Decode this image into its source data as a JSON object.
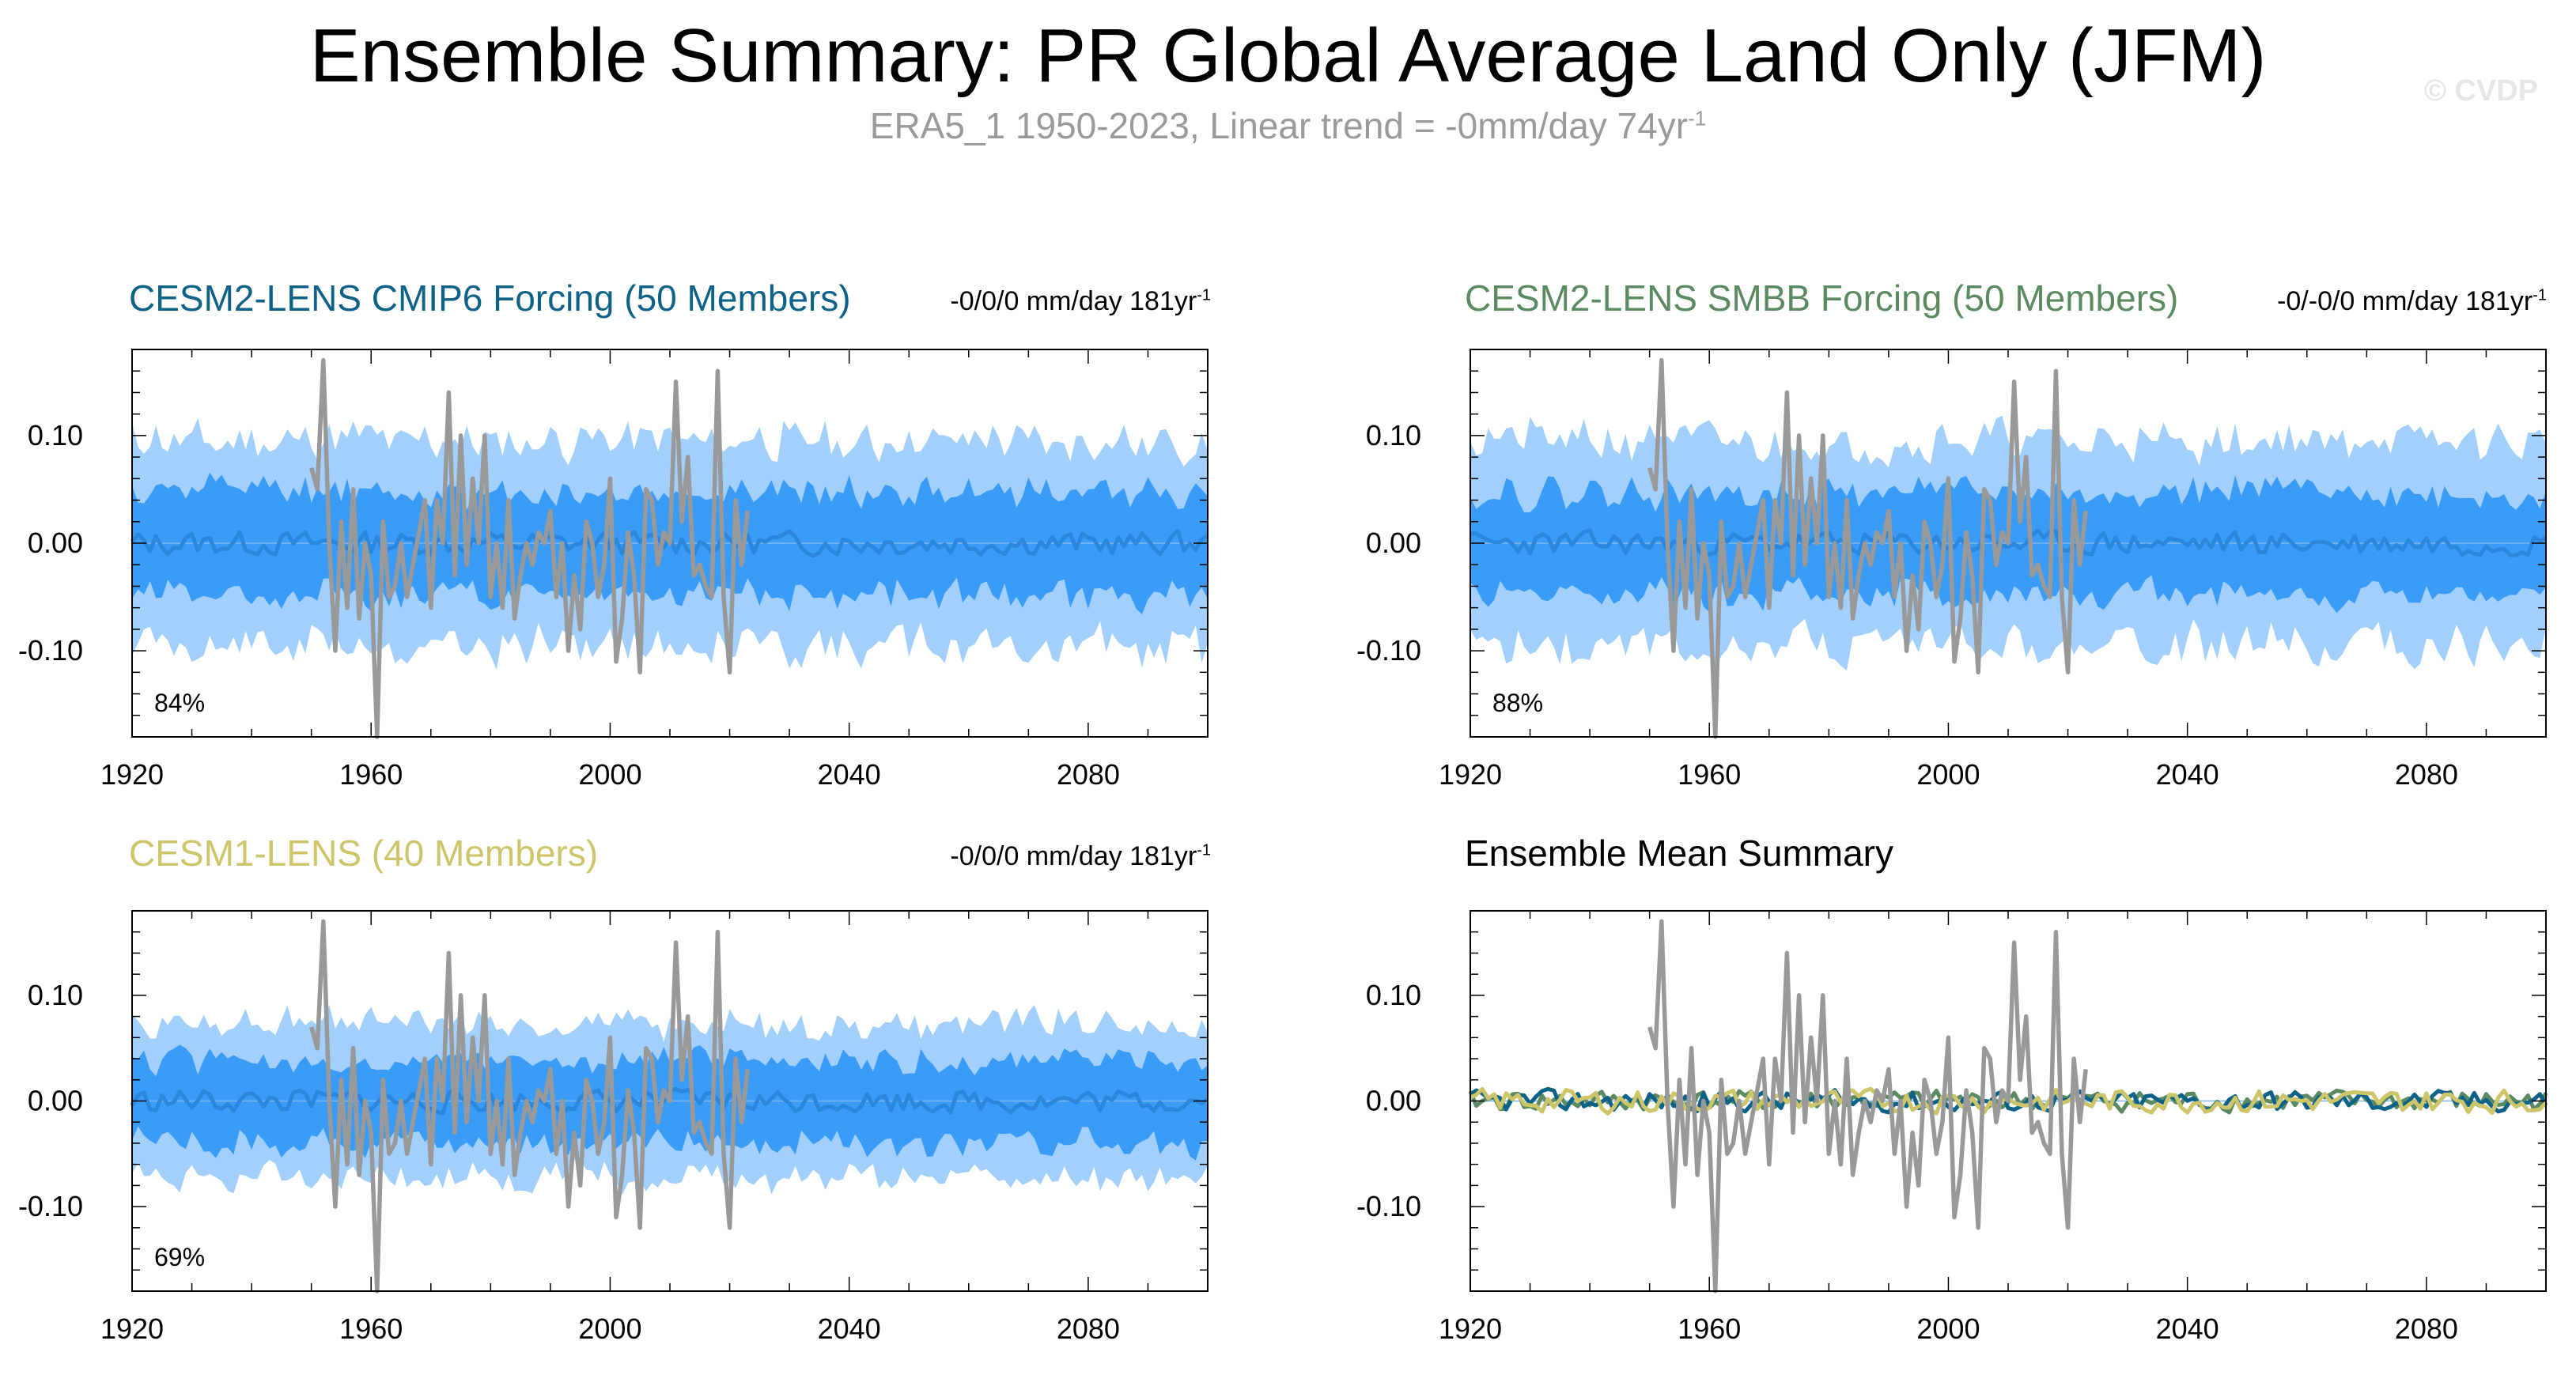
{
  "title": "Ensemble Summary: PR Global Average Land Only (JFM)",
  "subtitle": {
    "text": "ERA5_1 1950-2023, Linear trend = -0mm/day 74yr",
    "superscript": "-1"
  },
  "watermark": "© CVDP",
  "colors": {
    "observations": "#999999",
    "band_outer": "#a2cffc",
    "band_inner": "#3a9cf6",
    "ensemble_mean": "#2b86de",
    "cesm2_cmip6": "#0f6287",
    "cesm2_smbb": "#5b8a62",
    "cesm1": "#ccc56a"
  },
  "chart_data": [
    {
      "id": "cesm2-cmip6",
      "type": "area",
      "title": "CESM2-LENS CMIP6 Forcing (50 Members)",
      "title_color": "#0f6287",
      "trend": "-0/0/0 mm/day 181yr",
      "trend_superscript": "-1",
      "percent_label": "84%",
      "xlim": [
        1920,
        2100
      ],
      "ylim": [
        -0.18,
        0.18
      ],
      "x_ticks": [
        1920,
        1960,
        2000,
        2040,
        2080
      ],
      "y_ticks": [
        -0.1,
        0.0,
        0.1
      ],
      "y_tick_labels": [
        "-0.10",
        "0.00",
        "0.10"
      ],
      "series": [
        {
          "name": "Ensemble spread (outer)",
          "role": "band_outer",
          "width_max": 0.115,
          "width_min": 0.075,
          "seed": 11
        },
        {
          "name": "Ensemble spread (inner)",
          "role": "band_inner",
          "width_max": 0.06,
          "width_min": 0.035,
          "seed": 12
        },
        {
          "name": "Ensemble mean",
          "role": "mean",
          "amplitude": 0.013,
          "seed": 13
        },
        {
          "name": "ERA5_1",
          "role": "obs",
          "x_start": 1950,
          "x_end": 2023
        }
      ]
    },
    {
      "id": "cesm2-smbb",
      "type": "area",
      "title": "CESM2-LENS SMBB Forcing (50 Members)",
      "title_color": "#5b8a62",
      "trend": "-0/-0/0 mm/day 181yr",
      "trend_superscript": "-1",
      "percent_label": "88%",
      "xlim": [
        1920,
        2100
      ],
      "ylim": [
        -0.18,
        0.18
      ],
      "x_ticks": [
        1920,
        1960,
        2000,
        2040,
        2080
      ],
      "y_ticks": [
        -0.1,
        0.0,
        0.1
      ],
      "y_tick_labels": [
        "-0.10",
        "0.00",
        "0.10"
      ],
      "series": [
        {
          "name": "Ensemble spread (outer)",
          "role": "band_outer",
          "width_max": 0.115,
          "width_min": 0.075,
          "seed": 21
        },
        {
          "name": "Ensemble spread (inner)",
          "role": "band_inner",
          "width_max": 0.06,
          "width_min": 0.035,
          "seed": 22
        },
        {
          "name": "Ensemble mean",
          "role": "mean",
          "amplitude": 0.013,
          "seed": 23
        },
        {
          "name": "ERA5_1",
          "role": "obs",
          "x_start": 1950,
          "x_end": 2023
        }
      ]
    },
    {
      "id": "cesm1",
      "type": "area",
      "title": "CESM1-LENS (40 Members)",
      "title_color": "#ccc56a",
      "trend": "-0/0/0 mm/day 181yr",
      "trend_superscript": "-1",
      "percent_label": "69%",
      "xlim": [
        1920,
        2100
      ],
      "ylim": [
        -0.18,
        0.18
      ],
      "x_ticks": [
        1920,
        1960,
        2000,
        2040,
        2080
      ],
      "y_ticks": [
        -0.1,
        0.0,
        0.1
      ],
      "y_tick_labels": [
        "-0.10",
        "0.00",
        "0.10"
      ],
      "series": [
        {
          "name": "Ensemble spread (outer)",
          "role": "band_outer",
          "width_max": 0.085,
          "width_min": 0.06,
          "seed": 31
        },
        {
          "name": "Ensemble spread (inner)",
          "role": "band_inner",
          "width_max": 0.05,
          "width_min": 0.03,
          "seed": 32
        },
        {
          "name": "Ensemble mean",
          "role": "mean",
          "amplitude": 0.013,
          "seed": 33
        },
        {
          "name": "ERA5_1",
          "role": "obs",
          "x_start": 1950,
          "x_end": 2023
        }
      ]
    },
    {
      "id": "ensemble-mean-summary",
      "type": "line",
      "title": "Ensemble Mean Summary",
      "title_color": "#000000",
      "xlim": [
        1920,
        2100
      ],
      "ylim": [
        -0.18,
        0.18
      ],
      "x_ticks": [
        1920,
        1960,
        2000,
        2040,
        2080
      ],
      "y_ticks": [
        -0.1,
        0.0,
        0.1
      ],
      "y_tick_labels": [
        "-0.10",
        "0.00",
        "0.10"
      ],
      "series": [
        {
          "name": "ERA5_1",
          "role": "obs",
          "x_start": 1950,
          "x_end": 2023
        },
        {
          "name": "CESM2-LENS SMBB Forcing",
          "role": "mean_line",
          "color_key": "cesm2_smbb",
          "amplitude": 0.012,
          "seed": 41
        },
        {
          "name": "CESM2-LENS CMIP6 Forcing",
          "role": "mean_line",
          "color_key": "cesm2_cmip6",
          "amplitude": 0.012,
          "seed": 42
        },
        {
          "name": "CESM1-LENS",
          "role": "mean_line",
          "color_key": "cesm1",
          "amplitude": 0.013,
          "seed": 43
        }
      ]
    }
  ],
  "observations": {
    "name": "ERA5_1",
    "x_start": 1950,
    "x_end": 2023,
    "values": [
      0.07,
      0.05,
      0.17,
      0.0,
      -0.1,
      0.02,
      -0.06,
      0.05,
      -0.07,
      0.0,
      -0.03,
      -0.18,
      0.02,
      -0.05,
      -0.04,
      0.0,
      -0.05,
      -0.02,
      0.01,
      0.04,
      -0.06,
      0.04,
      0.0,
      0.14,
      -0.03,
      0.1,
      -0.02,
      0.06,
      0.0,
      0.1,
      -0.05,
      0.0,
      -0.06,
      0.04,
      -0.07,
      -0.03,
      0.0,
      -0.02,
      0.01,
      0.0,
      0.03,
      -0.05,
      0.0,
      -0.1,
      -0.03,
      -0.08,
      0.02,
      0.0,
      -0.05,
      -0.02,
      0.06,
      -0.11,
      -0.07,
      0.01,
      -0.03,
      -0.12,
      0.05,
      0.04,
      -0.02,
      0.01,
      0.0,
      0.15,
      0.02,
      0.08,
      -0.03,
      -0.02,
      -0.04,
      -0.05,
      0.16,
      -0.05,
      -0.12,
      0.04,
      -0.02,
      0.03
    ]
  }
}
